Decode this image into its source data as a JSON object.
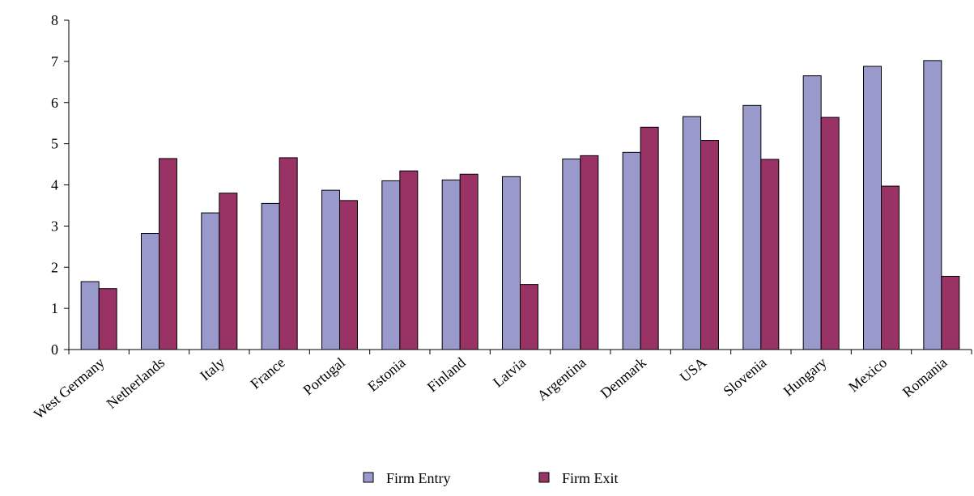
{
  "chart_data": {
    "type": "bar",
    "categories": [
      "West Germany",
      "Netherlands",
      "Italy",
      "France",
      "Portugal",
      "Estonia",
      "Finland",
      "Latvia",
      "Argentina",
      "Denmark",
      "USA",
      "Slovenia",
      "Hungary",
      "Mexico",
      "Romania"
    ],
    "series": [
      {
        "name": "Firm Entry",
        "color": "#9999cc",
        "values": [
          1.65,
          2.82,
          3.32,
          3.55,
          3.87,
          4.1,
          4.12,
          4.2,
          4.63,
          4.79,
          5.66,
          5.93,
          6.65,
          6.88,
          7.02
        ]
      },
      {
        "name": "Firm Exit",
        "color": "#993366",
        "values": [
          1.48,
          4.64,
          3.8,
          4.66,
          3.62,
          4.34,
          4.26,
          1.58,
          4.71,
          5.4,
          5.08,
          4.62,
          5.64,
          3.97,
          1.78
        ]
      }
    ],
    "ylim": [
      0,
      8
    ],
    "yticks": [
      "0",
      "1",
      "2",
      "3",
      "4",
      "5",
      "6",
      "7",
      "8"
    ],
    "xlabel": "",
    "ylabel": "",
    "grid": false,
    "legend": "bottom-center"
  }
}
